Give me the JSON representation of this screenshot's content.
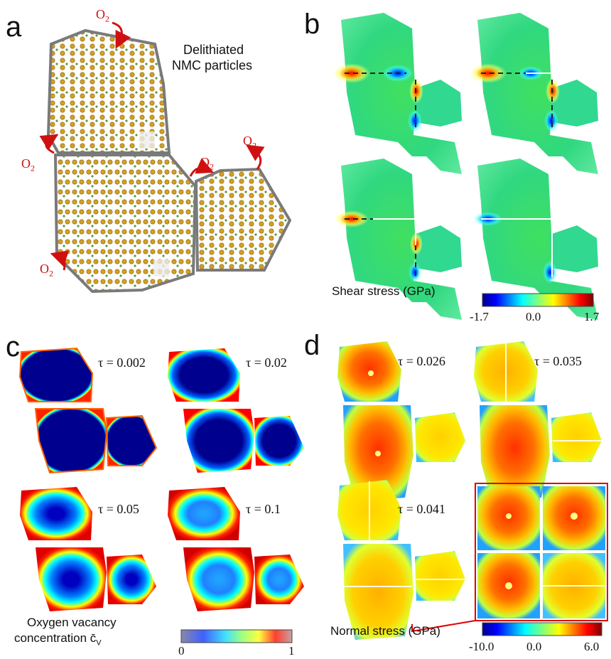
{
  "panels": {
    "a": {
      "label": "a",
      "title_line1": "Delithiated",
      "title_line2": "NMC particles",
      "o2_main": "O",
      "o2_sub": "2"
    },
    "b": {
      "label": "b",
      "colorbar_title": "Shear stress (GPa)",
      "ticks": [
        "-1.7",
        "0.0",
        "1.7"
      ]
    },
    "c": {
      "label": "c",
      "times": [
        "τ = 0.002",
        "τ = 0.02",
        "τ = 0.05",
        "τ = 0.1"
      ],
      "colorbar_title_line1": "Oxygen vacancy",
      "colorbar_title_line2": "concentration c̄",
      "colorbar_title_sub": "V",
      "ticks": [
        "0",
        "1"
      ]
    },
    "d": {
      "label": "d",
      "times": [
        "τ = 0.026",
        "τ = 0.035",
        "τ = 0.041"
      ],
      "colorbar_title": "Normal stress (GPa)",
      "ticks": [
        "-10.0",
        "0.0",
        "6.0"
      ]
    }
  },
  "colors": {
    "outline": "#7a7a7a",
    "accent_red": "#d01010",
    "jet_low": "#00008f",
    "jet_high": "#800000"
  }
}
